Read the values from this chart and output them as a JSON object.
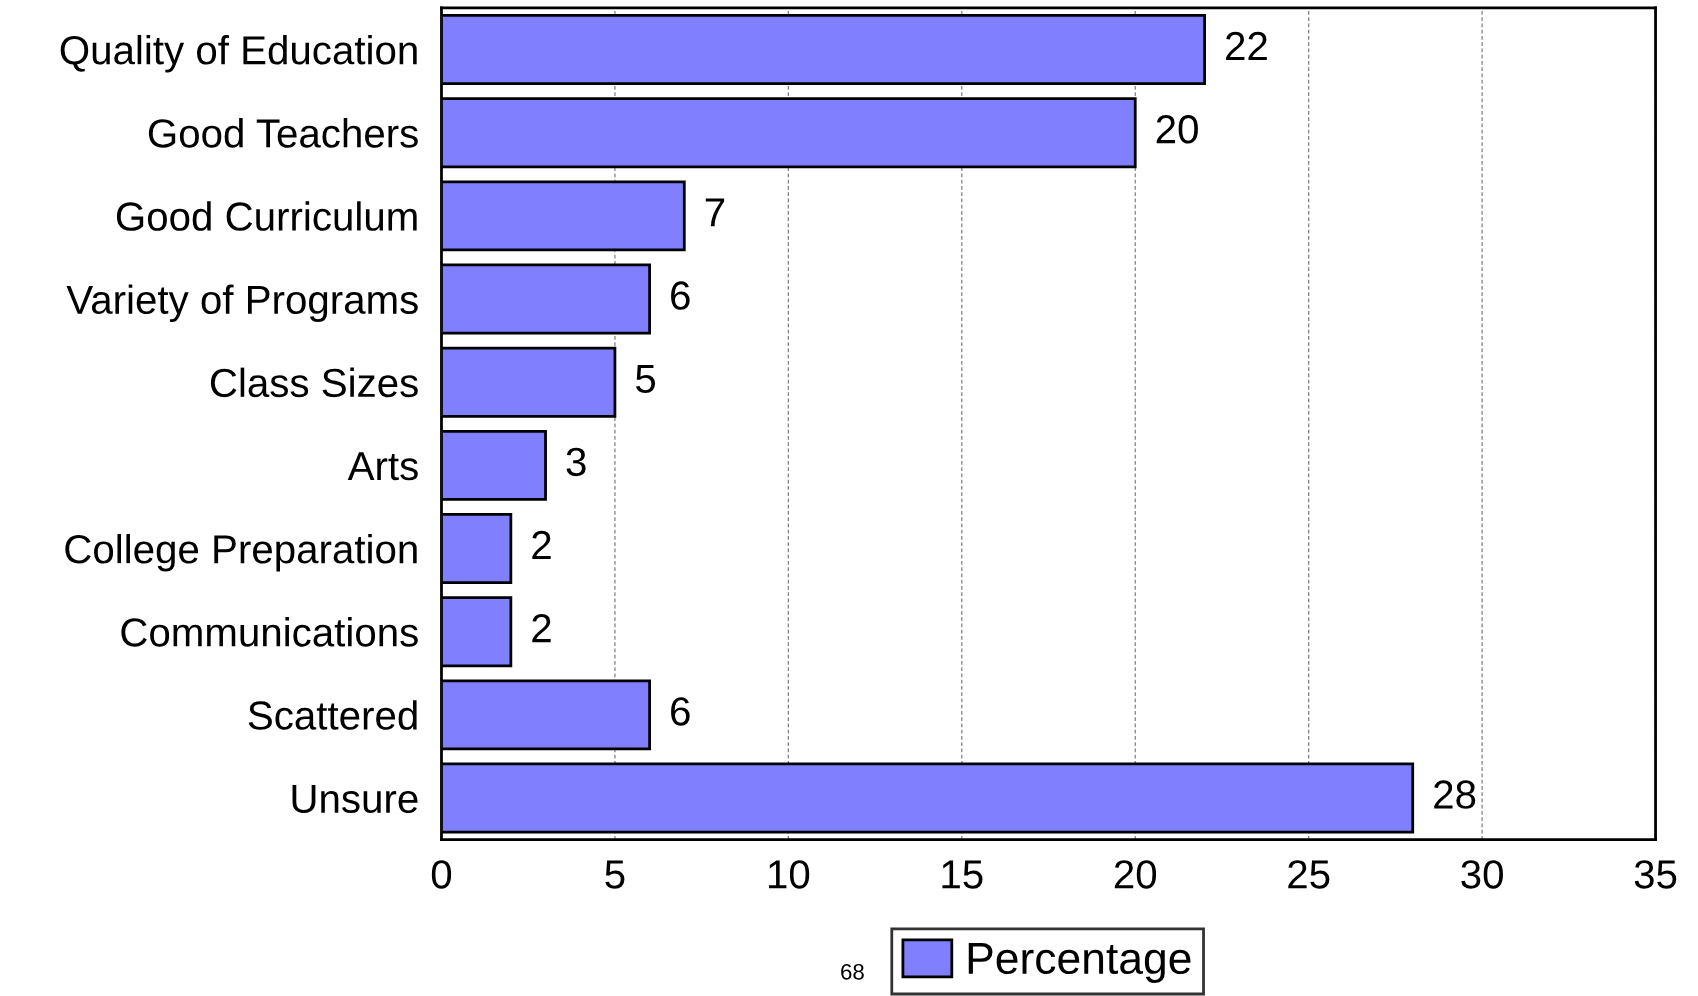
{
  "chart_data": {
    "type": "bar",
    "orientation": "horizontal",
    "categories": [
      "Quality of Education",
      "Good Teachers",
      "Good Curriculum",
      "Variety of Programs",
      "Class Sizes",
      "Arts",
      "College Preparation",
      "Communications",
      "Scattered",
      "Unsure"
    ],
    "series": [
      {
        "name": "Percentage",
        "color": "#8080ff",
        "values": [
          22,
          20,
          7,
          6,
          5,
          3,
          2,
          2,
          6,
          28
        ]
      }
    ],
    "xlim": [
      0,
      35
    ],
    "xticks": [
      0,
      5,
      10,
      15,
      20,
      25,
      30,
      35
    ],
    "grid": "x",
    "legend": "bottom",
    "data_labels": true,
    "annotations": [
      "68"
    ]
  }
}
